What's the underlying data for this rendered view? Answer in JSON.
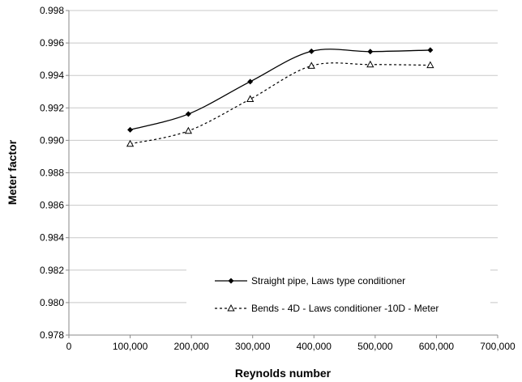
{
  "chart_data": {
    "type": "line",
    "title": "",
    "xlabel": "Reynolds number",
    "ylabel": "Meter factor",
    "xlim": [
      0,
      700000
    ],
    "ylim": [
      0.978,
      0.998
    ],
    "x_ticks": [
      "0",
      "100,000",
      "200,000",
      "300,000",
      "400,000",
      "500,000",
      "600,000",
      "700,000"
    ],
    "y_ticks": [
      "0.978",
      "0.980",
      "0.982",
      "0.984",
      "0.986",
      "0.988",
      "0.990",
      "0.992",
      "0.994",
      "0.996",
      "0.998"
    ],
    "grid": "horizontal",
    "legend_position": "bottom-center",
    "series": [
      {
        "name": "Straight pipe, Laws type conditioner",
        "color": "#000000",
        "line_style": "solid",
        "marker": "diamond",
        "x": [
          100000,
          195000,
          296000,
          396000,
          492000,
          590000
        ],
        "y": [
          0.99065,
          0.99162,
          0.99362,
          0.99549,
          0.99547,
          0.99556
        ]
      },
      {
        "name": "Bends - 4D - Laws conditioner -10D - Meter",
        "color": "#000000",
        "line_style": "dashed",
        "marker": "triangle",
        "x": [
          100000,
          195000,
          296000,
          396000,
          492000,
          590000
        ],
        "y": [
          0.98978,
          0.99058,
          0.99254,
          0.99459,
          0.99467,
          0.99463
        ]
      }
    ]
  }
}
